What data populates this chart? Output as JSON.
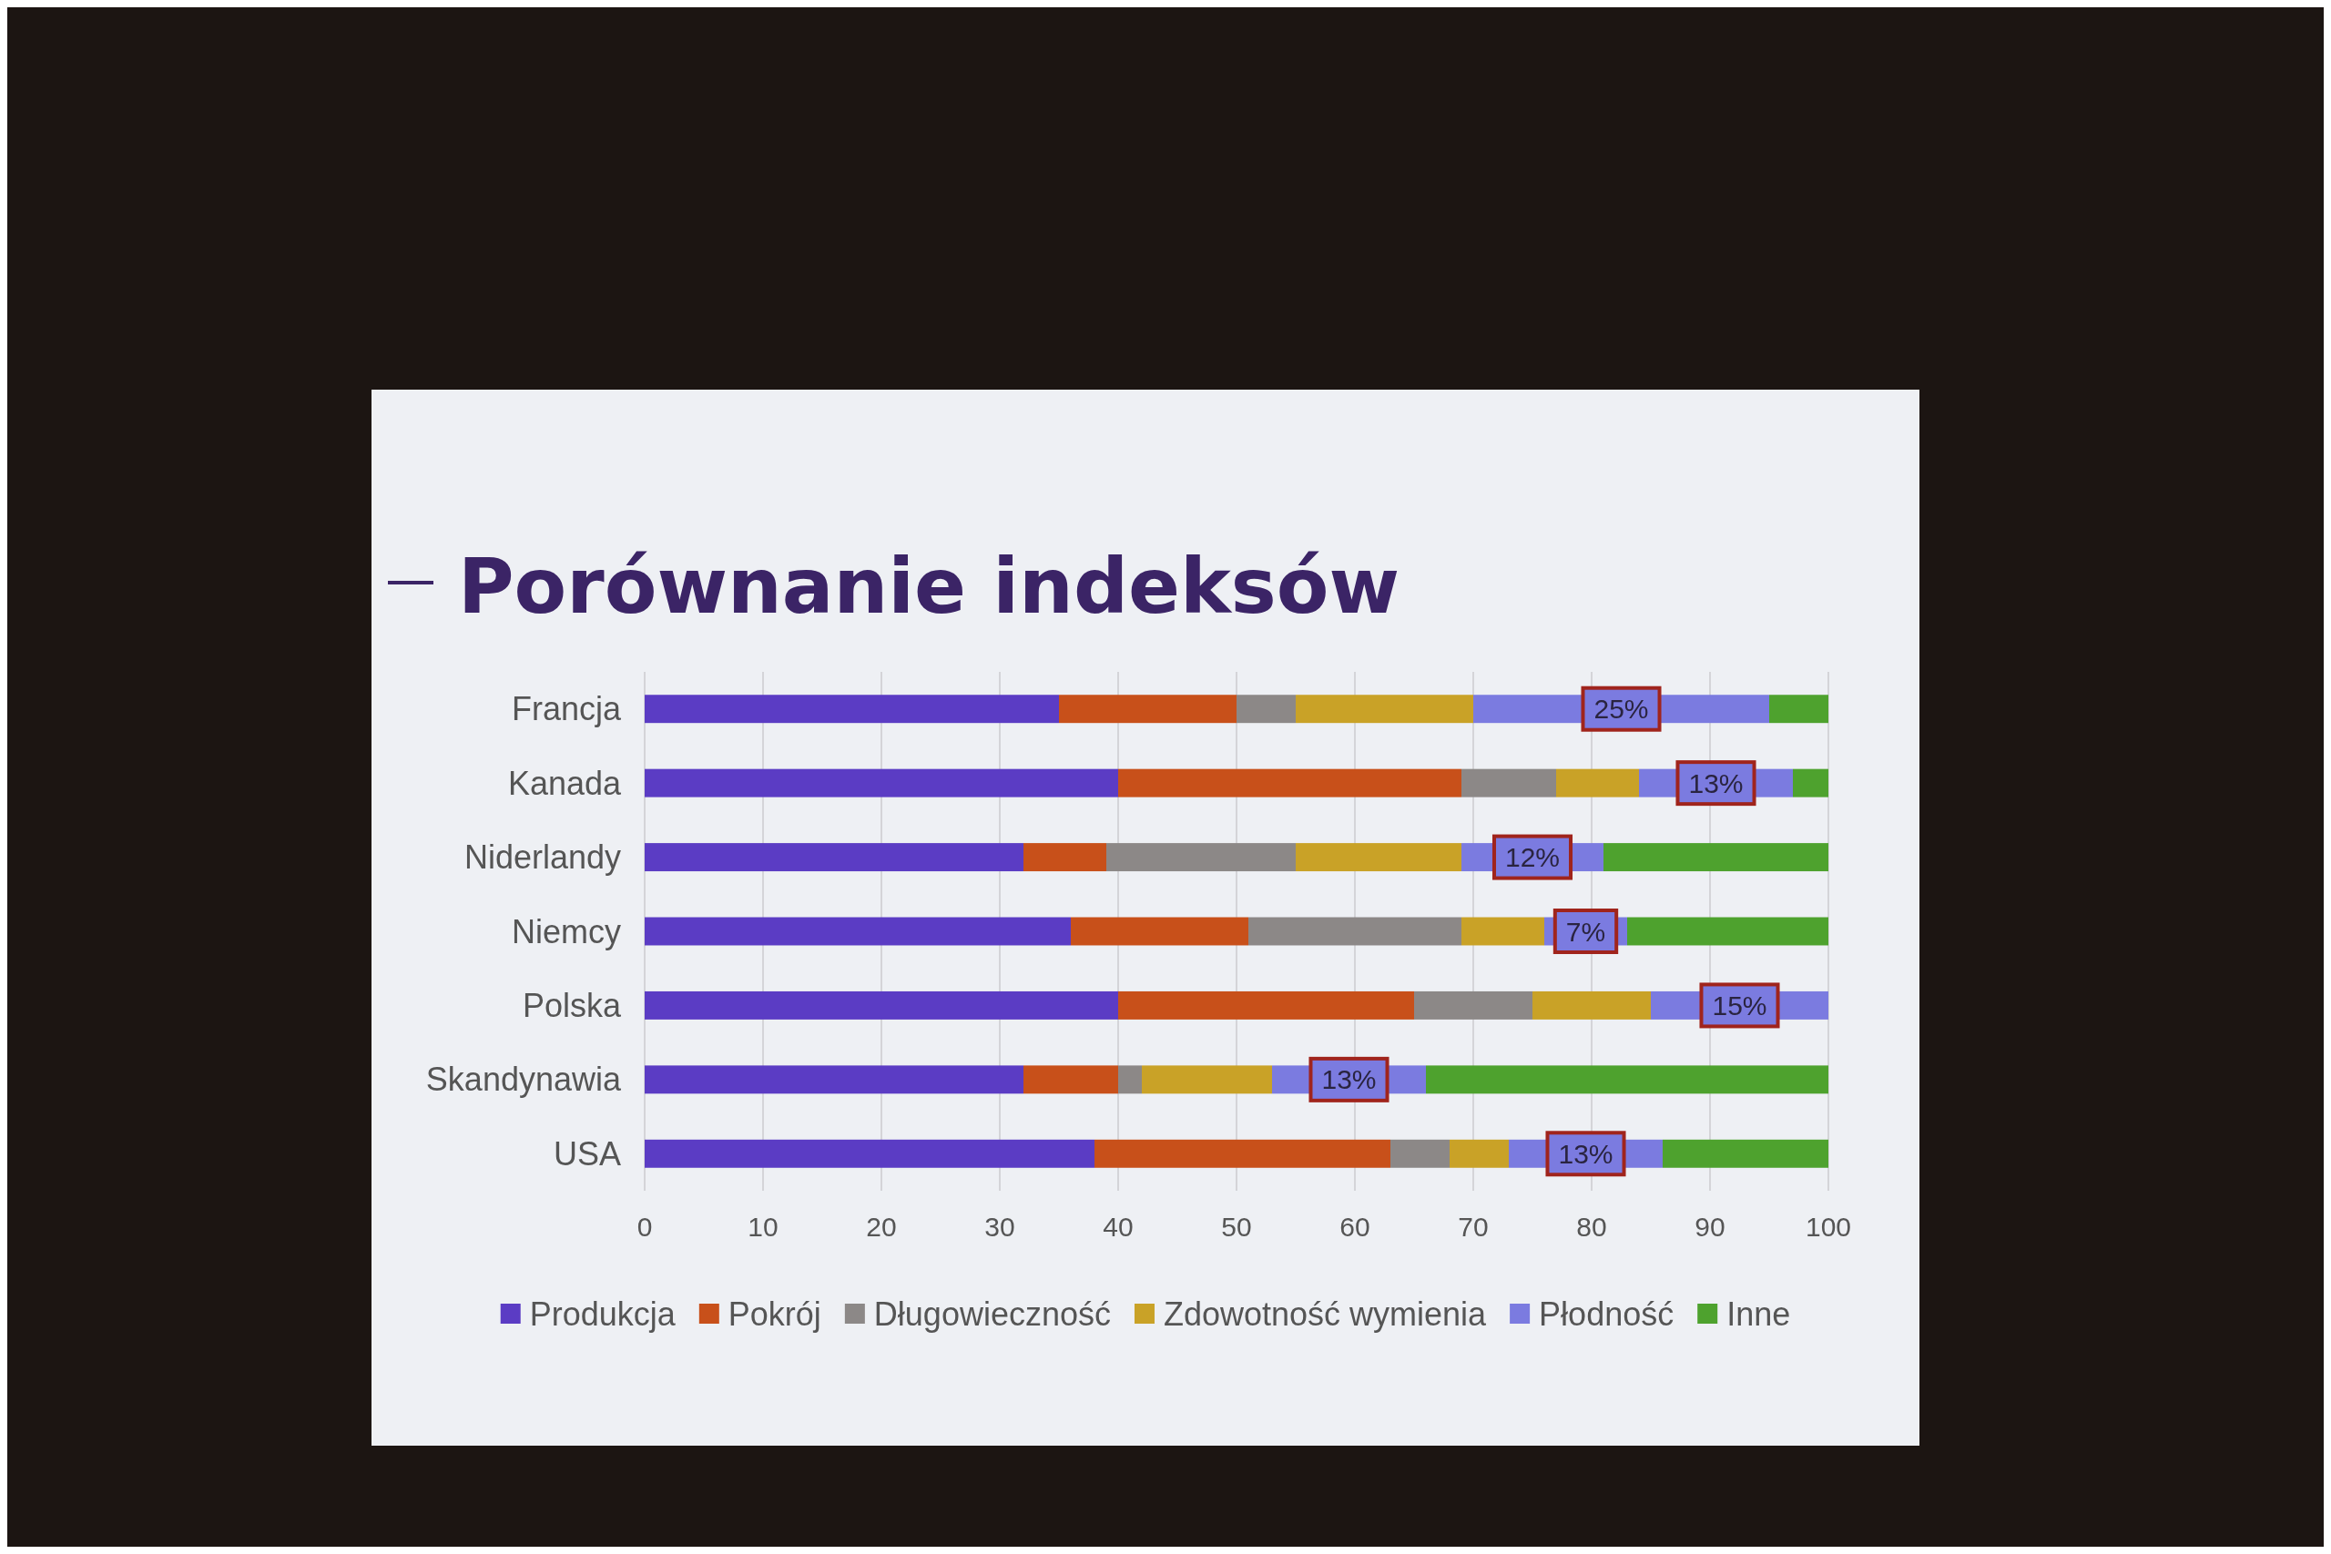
{
  "chart_data": {
    "type": "bar",
    "orientation": "horizontal",
    "stacked": true,
    "title": "Porównanie indeksów",
    "categories": [
      "Francja",
      "Kanada",
      "Niderlandy",
      "Niemcy",
      "Polska",
      "Skandynawia",
      "USA"
    ],
    "series": [
      {
        "name": "Produkcja",
        "color": "#5b3cc4",
        "values": [
          35,
          40,
          32,
          36,
          40,
          32,
          38
        ]
      },
      {
        "name": "Pokrój",
        "color": "#c8501a",
        "values": [
          15,
          29,
          7,
          15,
          25,
          8,
          25
        ]
      },
      {
        "name": "Długowieczność",
        "color": "#8c8887",
        "values": [
          5,
          8,
          16,
          18,
          10,
          2,
          5
        ]
      },
      {
        "name": "Zdowotność wymienia",
        "color": "#c9a227",
        "values": [
          15,
          7,
          14,
          7,
          10,
          11,
          5
        ]
      },
      {
        "name": "Płodność",
        "color": "#7b7be0",
        "values": [
          25,
          13,
          12,
          7,
          15,
          13,
          13
        ],
        "value_labels": [
          "25%",
          "13%",
          "12%",
          "7%",
          "15%",
          "13%",
          "13%"
        ]
      },
      {
        "name": "Inne",
        "color": "#4ea22e",
        "values": [
          5,
          3,
          19,
          17,
          0,
          34,
          14
        ]
      }
    ],
    "xlim": [
      0,
      100
    ],
    "xticks": [
      0,
      10,
      20,
      30,
      40,
      50,
      60,
      70,
      80,
      90,
      100
    ],
    "grid": "x",
    "legend": "bottom"
  }
}
